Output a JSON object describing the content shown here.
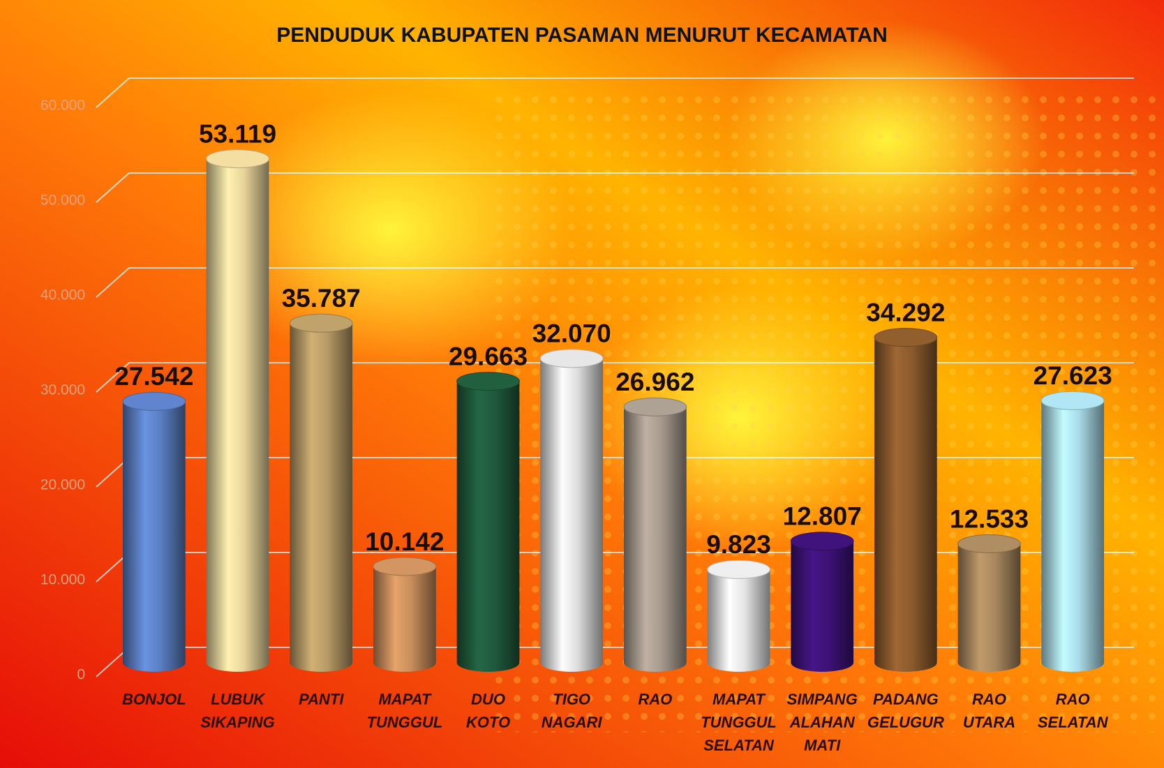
{
  "chart_data": {
    "type": "bar",
    "title": "PENDUDUK KABUPATEN PASAMAN MENURUT KECAMATAN",
    "categories": [
      "BONJOL",
      "LUBUK SIKAPING",
      "PANTI",
      "MAPAT TUNGGUL",
      "DUO KOTO",
      "TIGO NAGARI",
      "RAO",
      "MAPAT TUNGGUL SELATAN",
      "SIMPANG ALAHAN MATI",
      "PADANG GELUGUR",
      "RAO UTARA",
      "RAO SELATAN"
    ],
    "values": [
      27542,
      53119,
      35787,
      10142,
      29663,
      32070,
      26962,
      9823,
      12807,
      34292,
      12533,
      27623
    ],
    "value_labels": [
      "27.542",
      "53.119",
      "35.787",
      "10.142",
      "29.663",
      "32.070",
      "26.962",
      "9.823",
      "12.807",
      "34.292",
      "12.533",
      "27.623"
    ],
    "colors": [
      "#5b7fc4",
      "#e8d39a",
      "#b79a66",
      "#c98e5c",
      "#1f5a3c",
      "#dcdcdc",
      "#a69a8e",
      "#e4e4e4",
      "#3d1276",
      "#8a5a2c",
      "#a8875e",
      "#a9dbe8"
    ],
    "ylim": [
      0,
      60000
    ],
    "yticks": [
      0,
      {
        "value": 10000,
        "label": "10.000"
      },
      {
        "value": 20000,
        "label": "20.000"
      },
      {
        "value": 30000,
        "label": "30.000"
      },
      {
        "value": 40000,
        "label": "40.000"
      },
      {
        "value": 50000,
        "label": "50.000"
      },
      {
        "value": 60000,
        "label": "60.000"
      }
    ],
    "grid": true
  }
}
